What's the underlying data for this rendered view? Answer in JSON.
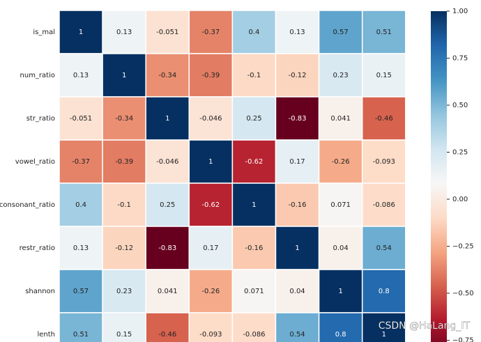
{
  "chart_data": {
    "type": "heatmap",
    "categories": [
      "is_mal",
      "num_ratio",
      "str_ratio",
      "vowel_ratio",
      "consonant_ratio",
      "restr_ratio",
      "shannon",
      "lenth"
    ],
    "matrix": [
      [
        1,
        0.13,
        -0.051,
        -0.37,
        0.4,
        0.13,
        0.57,
        0.51
      ],
      [
        0.13,
        1,
        -0.34,
        -0.39,
        -0.1,
        -0.12,
        0.23,
        0.15
      ],
      [
        -0.051,
        -0.34,
        1,
        -0.046,
        0.25,
        -0.83,
        0.041,
        -0.46
      ],
      [
        -0.37,
        -0.39,
        -0.046,
        1,
        -0.62,
        0.17,
        -0.26,
        -0.093
      ],
      [
        0.4,
        -0.1,
        0.25,
        -0.62,
        1,
        -0.16,
        0.071,
        -0.086
      ],
      [
        0.13,
        -0.12,
        -0.83,
        0.17,
        -0.16,
        1,
        0.04,
        0.54
      ],
      [
        0.57,
        0.23,
        0.041,
        -0.26,
        0.071,
        0.04,
        1,
        0.8
      ],
      [
        0.51,
        0.15,
        -0.46,
        -0.093,
        -0.086,
        0.54,
        0.8,
        1
      ]
    ],
    "colormap": "RdBu",
    "clim": [
      -0.83,
      1
    ],
    "cticks": [
      {
        "value": 1,
        "label": "1.00"
      },
      {
        "value": 0.75,
        "label": "0.75"
      },
      {
        "value": 0.5,
        "label": "0.50"
      },
      {
        "value": 0.25,
        "label": "0.25"
      },
      {
        "value": 0,
        "label": "0.00"
      },
      {
        "value": -0.25,
        "label": "−0.25"
      },
      {
        "value": -0.5,
        "label": "−0.50"
      },
      {
        "value": -0.75,
        "label": "−0.75"
      }
    ]
  },
  "watermark": "CSDN @HaLang_IT"
}
